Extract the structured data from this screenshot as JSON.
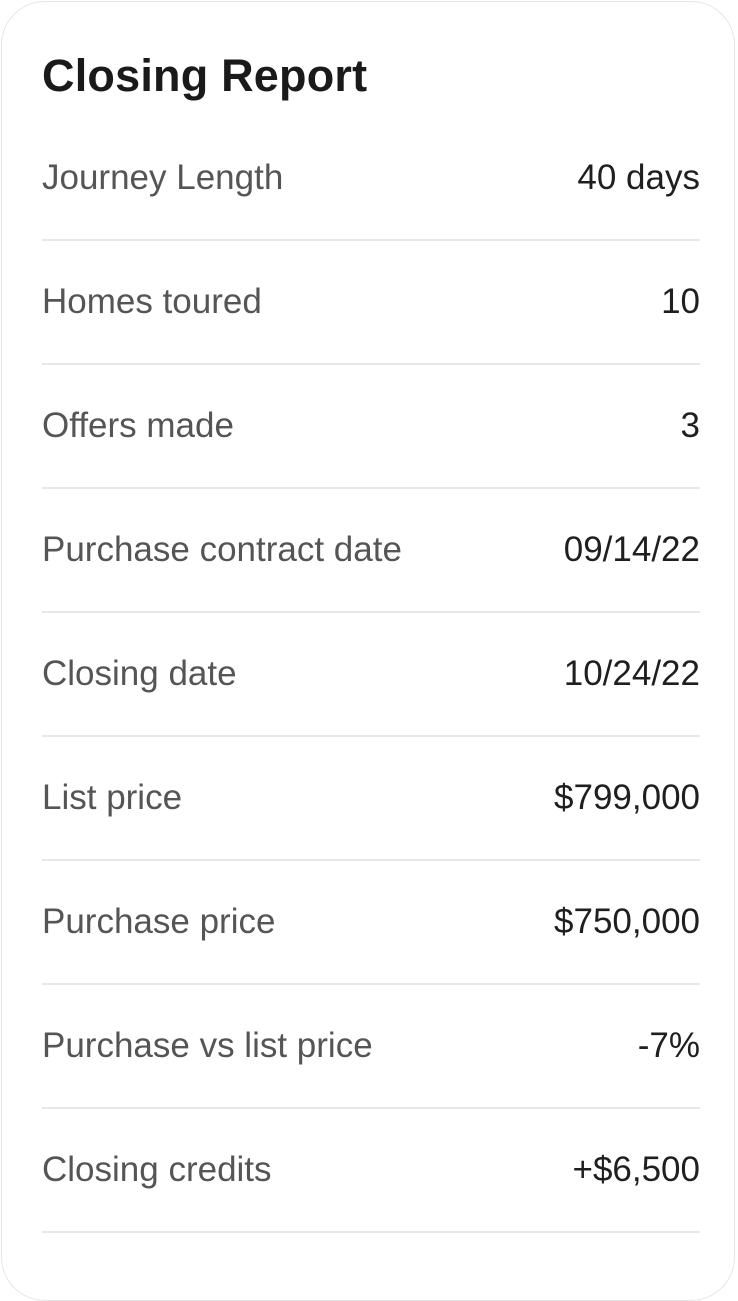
{
  "report": {
    "title": "Closing Report",
    "rows": [
      {
        "label": "Journey Length",
        "value": "40 days"
      },
      {
        "label": "Homes toured",
        "value": "10"
      },
      {
        "label": "Offers made",
        "value": "3"
      },
      {
        "label": "Purchase contract date",
        "value": "09/14/22"
      },
      {
        "label": "Closing date",
        "value": "10/24/22"
      },
      {
        "label": "List price",
        "value": "$799,000"
      },
      {
        "label": "Purchase price",
        "value": "$750,000"
      },
      {
        "label": "Purchase vs list price",
        "value": "-7%"
      },
      {
        "label": "Closing credits",
        "value": "+$6,500"
      }
    ]
  }
}
